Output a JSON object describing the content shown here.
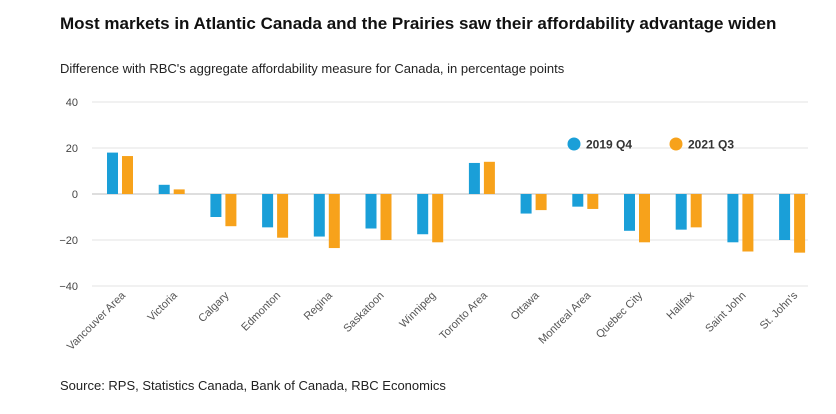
{
  "chart_data": {
    "type": "bar",
    "title": "Most markets in Atlantic Canada and the Prairies saw their affordability advantage widen",
    "subtitle": "Difference with RBC's aggregate affordability measure for Canada, in percentage points",
    "source": "Source: RPS, Statistics Canada, Bank of Canada, RBC Economics",
    "categories": [
      "Vancouver Area",
      "Victoria",
      "Calgary",
      "Edmonton",
      "Regina",
      "Saskatoon",
      "Winnipeg",
      "Toronto Area",
      "Ottawa",
      "Montreal Area",
      "Quebec City",
      "Halifax",
      "Saint John",
      "St. John's"
    ],
    "series": [
      {
        "name": "2019 Q4",
        "color": "#1a9fd8",
        "values": [
          18,
          4,
          -10,
          -14.5,
          -18.5,
          -15,
          -17.5,
          13.5,
          -8.5,
          -5.5,
          -16,
          -15.5,
          -21,
          -20
        ]
      },
      {
        "name": "2021 Q3",
        "color": "#f7a21b",
        "values": [
          16.5,
          2,
          -14,
          -19,
          -23.5,
          -20,
          -21,
          14,
          -7,
          -6.5,
          -21,
          -14.5,
          -25,
          -25.5
        ]
      }
    ],
    "ylim": [
      -40,
      40
    ],
    "yticks": [
      -40,
      -20,
      0,
      20,
      40
    ],
    "ytick_labels": [
      "−40",
      "−20",
      "0",
      "20",
      "40"
    ],
    "grid": true,
    "legend_position": "top-right"
  }
}
